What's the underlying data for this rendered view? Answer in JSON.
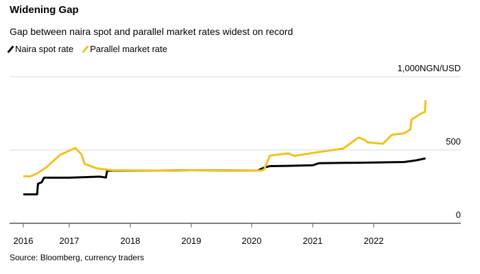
{
  "chart_data": {
    "type": "line",
    "title": "Widening Gap",
    "subtitle": "Gap between naira spot and parallel market rates widest on record",
    "source": "Source: Bloomberg, currency traders",
    "ylabel_unit": "NGN/USD",
    "ylim": [
      0,
      1000
    ],
    "yticks": [
      "0",
      "500",
      "1,000NGN/USD"
    ],
    "xticks": [
      "2016",
      "2017",
      "2018",
      "2019",
      "2020",
      "2021",
      "2022"
    ],
    "grid": true,
    "legend_position": "top-left",
    "series": [
      {
        "name": "Naira spot rate",
        "color": "#000000",
        "x": [
          2016.0,
          2016.3,
          2016.32,
          2016.4,
          2016.45,
          2016.5,
          2017.0,
          2017.5,
          2017.6,
          2017.62,
          2017.7,
          2018.5,
          2019.0,
          2020.1,
          2020.2,
          2020.3,
          2020.6,
          2021.0,
          2021.1,
          2021.5,
          2022.0,
          2022.5,
          2022.7,
          2022.85
        ],
        "values": [
          197,
          197,
          270,
          280,
          311,
          311,
          311,
          318,
          312,
          358,
          360,
          360,
          362,
          360,
          380,
          390,
          392,
          396,
          410,
          412,
          415,
          418,
          430,
          443
        ]
      },
      {
        "name": "Parallel market rate",
        "color": "#f2c11b",
        "x": [
          2016.0,
          2016.15,
          2016.3,
          2016.5,
          2016.8,
          2017.1,
          2017.2,
          2017.25,
          2017.45,
          2017.7,
          2018.5,
          2019.0,
          2020.15,
          2020.2,
          2020.3,
          2020.6,
          2020.7,
          2021.0,
          2021.5,
          2021.75,
          2021.85,
          2021.9,
          2022.15,
          2022.3,
          2022.5,
          2022.6,
          2022.62,
          2022.78,
          2022.84,
          2022.85
        ],
        "values": [
          321,
          320,
          340,
          382,
          467,
          514,
          470,
          406,
          375,
          362,
          360,
          362,
          360,
          365,
          462,
          477,
          460,
          480,
          510,
          585,
          570,
          552,
          543,
          604,
          614,
          640,
          708,
          750,
          760,
          840
        ]
      }
    ]
  }
}
